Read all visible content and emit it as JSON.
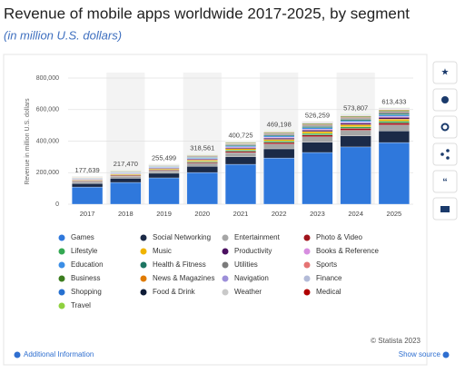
{
  "chart_data": {
    "type": "bar",
    "stacked": true,
    "title": "Revenue of mobile apps worldwide 2017-2025, by segment",
    "subtitle": "(in million U.S. dollars)",
    "y_label": "Revenue in million U.S. dollars",
    "categories": [
      "2017",
      "2018",
      "2019",
      "2020",
      "2021",
      "2022",
      "2023",
      "2024",
      "2025"
    ],
    "ylim": [
      0,
      800000
    ],
    "yticks": [
      0,
      {
        "value": 200000,
        "label": "200,000"
      },
      {
        "value": 400000,
        "label": "400,000"
      },
      {
        "value": 600000,
        "label": "600,000"
      },
      {
        "value": 800000,
        "label": "800,000"
      }
    ],
    "grid": true,
    "totals": [
      {
        "value": 177639,
        "label": "177,639"
      },
      {
        "value": 217470,
        "label": "217,470"
      },
      {
        "value": 255499,
        "label": "255,499"
      },
      {
        "value": 318561,
        "label": "318,561"
      },
      {
        "value": 400725,
        "label": "400,725"
      },
      {
        "value": 469198,
        "label": "469,198"
      },
      {
        "value": 526259,
        "label": "526,259"
      },
      {
        "value": 573807,
        "label": "573,807"
      },
      {
        "value": 613433,
        "label": "613,433"
      }
    ],
    "series": [
      {
        "name": "Games",
        "color": "#2f78dc",
        "values": [
          109000,
          138000,
          167000,
          201000,
          253000,
          293000,
          328000,
          363000,
          391000
        ]
      },
      {
        "name": "Social Networking",
        "color": "#1b2a47",
        "values": [
          22600,
          26200,
          29200,
          38800,
          48700,
          58100,
          65400,
          69600,
          73400
        ]
      },
      {
        "name": "Entertainment",
        "color": "#a6a6a6",
        "values": [
          11700,
          13500,
          15000,
          20000,
          25100,
          30000,
          33700,
          35800,
          37800
        ]
      },
      {
        "name": "Photo & Video",
        "color": "#a0141c",
        "values": [
          4100,
          4800,
          5300,
          7100,
          8900,
          10600,
          11900,
          12600,
          13300
        ]
      },
      {
        "name": "Lifestyle",
        "color": "#34a853",
        "values": [
          3400,
          4000,
          4400,
          5900,
          7400,
          8800,
          9900,
          10500,
          11100
        ]
      },
      {
        "name": "Music",
        "color": "#f0b400",
        "values": [
          4100,
          4800,
          5300,
          7100,
          8900,
          10600,
          11900,
          12600,
          13300
        ]
      },
      {
        "name": "Productivity",
        "color": "#4b1060",
        "values": [
          3400,
          4000,
          4400,
          5900,
          7400,
          8800,
          9900,
          10500,
          11100
        ]
      },
      {
        "name": "Books & Reference",
        "color": "#d78ee0",
        "values": [
          2100,
          2400,
          2700,
          3500,
          4400,
          5300,
          5900,
          6300,
          6700
        ]
      },
      {
        "name": "Education",
        "color": "#3b8ee6",
        "values": [
          2700,
          3200,
          3500,
          4700,
          5900,
          7000,
          7900,
          8400,
          8900
        ]
      },
      {
        "name": "Health & Fitness",
        "color": "#1d7562",
        "values": [
          2700,
          3200,
          3500,
          4700,
          5900,
          7000,
          7900,
          8400,
          8900
        ]
      },
      {
        "name": "Utilities",
        "color": "#7b7b7b",
        "values": [
          2700,
          3200,
          3500,
          4700,
          5900,
          7000,
          7900,
          8400,
          8900
        ]
      },
      {
        "name": "Sports",
        "color": "#e57373",
        "values": [
          1400,
          1600,
          1800,
          2400,
          3000,
          3500,
          4000,
          4200,
          4400
        ]
      },
      {
        "name": "Business",
        "color": "#3c7d1f",
        "values": [
          2100,
          2400,
          2700,
          3500,
          4400,
          5300,
          5900,
          6300,
          6700
        ]
      },
      {
        "name": "News & Magazines",
        "color": "#e07b00",
        "values": [
          1400,
          1600,
          1800,
          2400,
          3000,
          3500,
          4000,
          4200,
          4400
        ]
      },
      {
        "name": "Navigation",
        "color": "#9d8fd9",
        "values": [
          700,
          800,
          900,
          1200,
          1500,
          1800,
          2000,
          2100,
          2200
        ]
      },
      {
        "name": "Finance",
        "color": "#b3bbd8",
        "values": [
          700,
          800,
          900,
          1200,
          1500,
          1800,
          2000,
          2100,
          2200
        ]
      },
      {
        "name": "Shopping",
        "color": "#2670d0",
        "values": [
          700,
          800,
          900,
          1200,
          1500,
          1800,
          2000,
          2100,
          2200
        ]
      },
      {
        "name": "Food & Drink",
        "color": "#0e1b36",
        "values": [
          700,
          800,
          900,
          1200,
          1500,
          1800,
          2000,
          2100,
          2200
        ]
      },
      {
        "name": "Weather",
        "color": "#c9c9c9",
        "values": [
          300,
          400,
          400,
          600,
          700,
          900,
          1000,
          1100,
          1100
        ]
      },
      {
        "name": "Medical",
        "color": "#b00000",
        "values": [
          300,
          400,
          400,
          600,
          700,
          900,
          1000,
          1100,
          1100
        ]
      },
      {
        "name": "Travel",
        "color": "#8fd13f",
        "values": [
          700,
          800,
          900,
          1200,
          1500,
          1800,
          2000,
          2100,
          2200
        ]
      }
    ]
  },
  "footer": {
    "source": "© Statista 2023",
    "show_source": "Show source",
    "additional": "Additional Information"
  }
}
